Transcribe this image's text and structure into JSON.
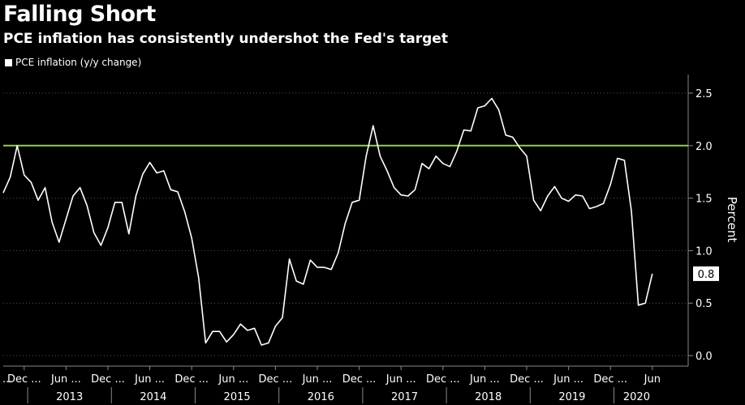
{
  "header": {
    "title": "Falling Short",
    "subtitle": "PCE inflation has consistently undershot the Fed's target"
  },
  "legend": {
    "label": "PCE inflation (y/y change)",
    "color": "#ffffff"
  },
  "colors": {
    "background": "#000000",
    "line": "#ffffff",
    "target": "#8cd63e",
    "grid": "#555555"
  },
  "chart_data": {
    "type": "line",
    "title": "Falling Short",
    "subtitle": "PCE inflation has consistently undershot the Fed's target",
    "ylabel": "Percent",
    "ylim": [
      -0.05,
      2.7
    ],
    "yticks": [
      0.0,
      0.5,
      1.0,
      1.5,
      2.0,
      2.5
    ],
    "ytick_labels": [
      "0.0",
      "0.5",
      "1.0",
      "1.5",
      "2.0",
      "2.5"
    ],
    "grid": true,
    "legend_position": "top-left",
    "target_line": {
      "value": 2.0
    },
    "last_value_label": "0.8",
    "month_ticks": [
      {
        "date": "2012-12",
        "label": "Dec ..."
      },
      {
        "date": "2013-06",
        "label": "Jun ..."
      },
      {
        "date": "2013-12",
        "label": "Dec ..."
      },
      {
        "date": "2014-06",
        "label": "Jun ..."
      },
      {
        "date": "2014-12",
        "label": "Dec ..."
      },
      {
        "date": "2015-06",
        "label": "Jun ..."
      },
      {
        "date": "2015-12",
        "label": "Dec ..."
      },
      {
        "date": "2016-06",
        "label": "Jun ..."
      },
      {
        "date": "2016-12",
        "label": "Dec ..."
      },
      {
        "date": "2017-06",
        "label": "Jun ..."
      },
      {
        "date": "2017-12",
        "label": "Dec ..."
      },
      {
        "date": "2018-06",
        "label": "Jun ..."
      },
      {
        "date": "2018-12",
        "label": "Dec ..."
      },
      {
        "date": "2019-06",
        "label": "Jun ..."
      },
      {
        "date": "2019-12",
        "label": "Dec ..."
      },
      {
        "date": "2020-06",
        "label": "Jun"
      }
    ],
    "year_ticks": [
      {
        "year": "2013",
        "label": "2013"
      },
      {
        "year": "2014",
        "label": "2014"
      },
      {
        "year": "2015",
        "label": "2015"
      },
      {
        "year": "2016",
        "label": "2016"
      },
      {
        "year": "2017",
        "label": "2017"
      },
      {
        "year": "2018",
        "label": "2018"
      },
      {
        "year": "2019",
        "label": "2019"
      },
      {
        "year": "2020",
        "label": "2020"
      }
    ],
    "series": [
      {
        "name": "PCE inflation (y/y change)",
        "x": [
          "2012-09",
          "2012-10",
          "2012-11",
          "2012-12",
          "2013-01",
          "2013-02",
          "2013-03",
          "2013-04",
          "2013-05",
          "2013-06",
          "2013-07",
          "2013-08",
          "2013-09",
          "2013-10",
          "2013-11",
          "2013-12",
          "2014-01",
          "2014-02",
          "2014-03",
          "2014-04",
          "2014-05",
          "2014-06",
          "2014-07",
          "2014-08",
          "2014-09",
          "2014-10",
          "2014-11",
          "2014-12",
          "2015-01",
          "2015-02",
          "2015-03",
          "2015-04",
          "2015-05",
          "2015-06",
          "2015-07",
          "2015-08",
          "2015-09",
          "2015-10",
          "2015-11",
          "2015-12",
          "2016-01",
          "2016-02",
          "2016-03",
          "2016-04",
          "2016-05",
          "2016-06",
          "2016-07",
          "2016-08",
          "2016-09",
          "2016-10",
          "2016-11",
          "2016-12",
          "2017-01",
          "2017-02",
          "2017-03",
          "2017-04",
          "2017-05",
          "2017-06",
          "2017-07",
          "2017-08",
          "2017-09",
          "2017-10",
          "2017-11",
          "2017-12",
          "2018-01",
          "2018-02",
          "2018-03",
          "2018-04",
          "2018-05",
          "2018-06",
          "2018-07",
          "2018-08",
          "2018-09",
          "2018-10",
          "2018-11",
          "2018-12",
          "2019-01",
          "2019-02",
          "2019-03",
          "2019-04",
          "2019-05",
          "2019-06",
          "2019-07",
          "2019-08",
          "2019-09",
          "2019-10",
          "2019-11",
          "2019-12",
          "2020-01",
          "2020-02",
          "2020-03",
          "2020-04",
          "2020-05",
          "2020-06"
        ],
        "values": [
          1.55,
          1.7,
          2.0,
          1.72,
          1.65,
          1.48,
          1.6,
          1.27,
          1.08,
          1.3,
          1.52,
          1.6,
          1.43,
          1.17,
          1.05,
          1.22,
          1.46,
          1.46,
          1.16,
          1.52,
          1.73,
          1.84,
          1.74,
          1.76,
          1.58,
          1.56,
          1.37,
          1.12,
          0.74,
          0.12,
          0.23,
          0.23,
          0.13,
          0.2,
          0.3,
          0.24,
          0.26,
          0.1,
          0.12,
          0.28,
          0.36,
          0.92,
          0.71,
          0.68,
          0.91,
          0.84,
          0.84,
          0.82,
          0.98,
          1.26,
          1.46,
          1.48,
          1.9,
          2.19,
          1.9,
          1.76,
          1.6,
          1.53,
          1.52,
          1.58,
          1.83,
          1.78,
          1.9,
          1.83,
          1.8,
          1.95,
          2.15,
          2.14,
          2.36,
          2.38,
          2.45,
          2.34,
          2.1,
          2.08,
          1.98,
          1.9,
          1.48,
          1.38,
          1.52,
          1.61,
          1.5,
          1.47,
          1.53,
          1.52,
          1.4,
          1.42,
          1.45,
          1.63,
          1.88,
          1.86,
          1.38,
          0.48,
          0.5,
          0.78
        ]
      }
    ]
  }
}
